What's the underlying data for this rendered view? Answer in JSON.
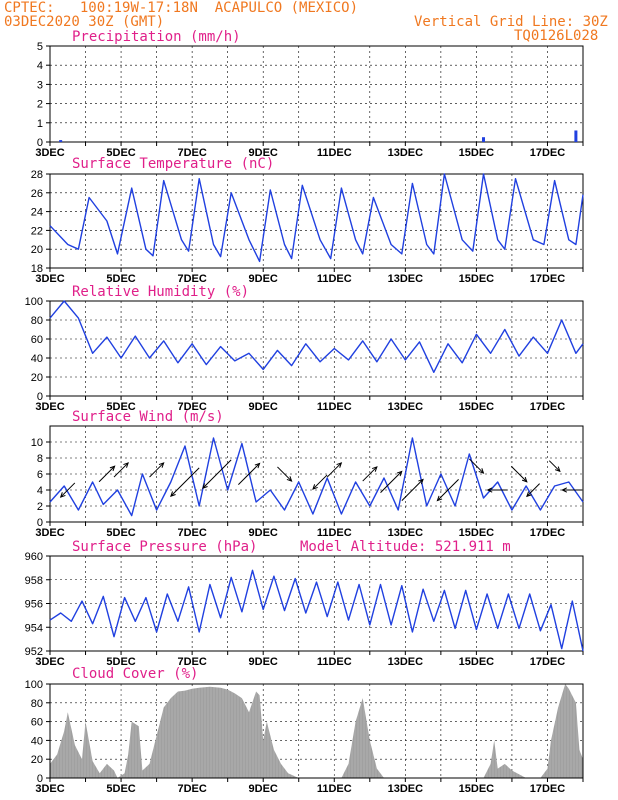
{
  "header": {
    "source": "CPTEC:",
    "coords": "100:19W-17:18N",
    "location": "ACAPULCO (MEXICO)",
    "run": "03DEC2020 30Z (GMT)",
    "grid_line": "Vertical Grid Line: 30Z",
    "code": "TQ0126L028"
  },
  "colors": {
    "header": "#f07820",
    "panel_title": "#e0208a",
    "series": "#2040e0",
    "cloud": "#a0a0a0"
  },
  "x_axis": {
    "labels": [
      "3DEC",
      "5DEC",
      "7DEC",
      "9DEC",
      "11DEC",
      "13DEC",
      "15DEC",
      "17DEC"
    ],
    "start_day": 3,
    "end_day": 18
  },
  "chart_data": [
    {
      "type": "bar",
      "title": "Precipitation (mm/h)",
      "ylim": [
        0,
        5
      ],
      "yticks": [
        0,
        1,
        2,
        3,
        4,
        5
      ],
      "x": [
        3.3,
        15.2,
        17.8
      ],
      "values": [
        0.1,
        0.25,
        0.6
      ]
    },
    {
      "type": "line",
      "title": "Surface Temperature (nC)",
      "ylim": [
        18,
        28
      ],
      "yticks": [
        18,
        20,
        22,
        24,
        26,
        28
      ],
      "x": [
        3.0,
        3.5,
        3.8,
        4.1,
        4.6,
        4.9,
        5.3,
        5.7,
        5.9,
        6.2,
        6.7,
        6.9,
        7.2,
        7.6,
        7.8,
        8.1,
        8.6,
        8.9,
        9.2,
        9.6,
        9.8,
        10.1,
        10.6,
        10.9,
        11.2,
        11.6,
        11.8,
        12.1,
        12.6,
        12.9,
        13.2,
        13.6,
        13.8,
        14.1,
        14.6,
        14.9,
        15.2,
        15.6,
        15.8,
        16.1,
        16.6,
        16.9,
        17.2,
        17.6,
        17.8,
        18.0
      ],
      "y": [
        22.5,
        20.5,
        20,
        25.5,
        23,
        19.5,
        26.5,
        20,
        19.3,
        27.3,
        21,
        19.8,
        27.5,
        20.5,
        19.2,
        26,
        21,
        18.7,
        26.3,
        20.5,
        19,
        26.8,
        21,
        19,
        26.5,
        21,
        19.5,
        25.5,
        20.5,
        19.5,
        27,
        20.5,
        19.5,
        28,
        21,
        19.8,
        28,
        21,
        20,
        27.5,
        21,
        20.5,
        27.3,
        21,
        20.5,
        25.8
      ]
    },
    {
      "type": "line",
      "title": "Relative Humidity (%)",
      "ylim": [
        0,
        100
      ],
      "yticks": [
        0,
        20,
        40,
        60,
        80,
        100
      ],
      "x": [
        3.0,
        3.4,
        3.8,
        4.2,
        4.6,
        5.0,
        5.4,
        5.8,
        6.2,
        6.6,
        7.0,
        7.4,
        7.8,
        8.2,
        8.6,
        9.0,
        9.4,
        9.8,
        10.2,
        10.6,
        11.0,
        11.4,
        11.8,
        12.2,
        12.6,
        13.0,
        13.4,
        13.8,
        14.2,
        14.6,
        15.0,
        15.4,
        15.8,
        16.2,
        16.6,
        17.0,
        17.4,
        17.8,
        18.0
      ],
      "y": [
        82,
        100,
        82,
        45,
        62,
        40,
        63,
        40,
        58,
        35,
        55,
        33,
        52,
        37,
        45,
        28,
        48,
        32,
        55,
        36,
        50,
        38,
        58,
        36,
        60,
        38,
        57,
        25,
        55,
        35,
        65,
        45,
        70,
        42,
        62,
        45,
        80,
        45,
        55
      ]
    },
    {
      "type": "line",
      "title": "Surface Wind (m/s)",
      "ylim": [
        0,
        12
      ],
      "yticks": [
        0,
        2,
        4,
        6,
        8,
        10
      ],
      "x": [
        3.0,
        3.4,
        3.8,
        4.2,
        4.5,
        4.9,
        5.3,
        5.6,
        6.0,
        6.4,
        6.8,
        7.2,
        7.6,
        8.0,
        8.4,
        8.8,
        9.2,
        9.6,
        10.0,
        10.4,
        10.8,
        11.2,
        11.6,
        12.0,
        12.4,
        12.8,
        13.2,
        13.6,
        14.0,
        14.4,
        14.8,
        15.2,
        15.6,
        16.0,
        16.4,
        16.8,
        17.2,
        17.6,
        18.0
      ],
      "y": [
        2.5,
        4.5,
        1.5,
        5,
        2.2,
        4,
        0.8,
        6,
        1.5,
        5,
        9.5,
        2,
        10.5,
        4,
        9.8,
        2.5,
        4,
        1.5,
        5,
        1,
        5.5,
        1,
        5,
        2,
        5.5,
        1.5,
        10.5,
        2,
        6,
        2,
        8.5,
        3,
        5,
        1.5,
        4.5,
        1.5,
        4.5,
        5,
        2.5
      ],
      "arrows": [
        {
          "x": 3.5,
          "y": 4,
          "dir": 225,
          "len": 20
        },
        {
          "x": 4.6,
          "y": 6,
          "dir": 45,
          "len": 22
        },
        {
          "x": 5.0,
          "y": 6.5,
          "dir": 45,
          "len": 20
        },
        {
          "x": 6.0,
          "y": 6.5,
          "dir": 45,
          "len": 20
        },
        {
          "x": 6.8,
          "y": 5,
          "dir": 225,
          "len": 40
        },
        {
          "x": 7.7,
          "y": 6,
          "dir": 225,
          "len": 40
        },
        {
          "x": 8.6,
          "y": 6,
          "dir": 45,
          "len": 30
        },
        {
          "x": 9.6,
          "y": 6,
          "dir": 315,
          "len": 20
        },
        {
          "x": 10.6,
          "y": 5,
          "dir": 225,
          "len": 20
        },
        {
          "x": 11.0,
          "y": 6.5,
          "dir": 45,
          "len": 20
        },
        {
          "x": 12.0,
          "y": 6,
          "dir": 45,
          "len": 20
        },
        {
          "x": 12.6,
          "y": 5,
          "dir": 45,
          "len": 30
        },
        {
          "x": 13.2,
          "y": 4,
          "dir": 45,
          "len": 30
        },
        {
          "x": 14.2,
          "y": 4,
          "dir": 225,
          "len": 30
        },
        {
          "x": 15.0,
          "y": 7,
          "dir": 315,
          "len": 20
        },
        {
          "x": 15.6,
          "y": 4,
          "dir": 180,
          "len": 20
        },
        {
          "x": 16.2,
          "y": 6,
          "dir": 315,
          "len": 22
        },
        {
          "x": 16.6,
          "y": 4,
          "dir": 225,
          "len": 18
        },
        {
          "x": 17.2,
          "y": 7,
          "dir": 315,
          "len": 15
        },
        {
          "x": 17.7,
          "y": 4,
          "dir": 180,
          "len": 20
        }
      ]
    },
    {
      "type": "line",
      "title": "Surface Pressure (hPa)",
      "annotation": "Model Altitude: 521.911 m",
      "ylim": [
        952,
        960
      ],
      "yticks": [
        952,
        954,
        956,
        958,
        960
      ],
      "x": [
        3.0,
        3.3,
        3.6,
        3.9,
        4.2,
        4.5,
        4.8,
        5.1,
        5.4,
        5.7,
        6.0,
        6.3,
        6.6,
        6.9,
        7.2,
        7.5,
        7.8,
        8.1,
        8.4,
        8.7,
        9.0,
        9.3,
        9.6,
        9.9,
        10.2,
        10.5,
        10.8,
        11.1,
        11.4,
        11.7,
        12.0,
        12.3,
        12.6,
        12.9,
        13.2,
        13.5,
        13.8,
        14.1,
        14.4,
        14.7,
        15.0,
        15.3,
        15.6,
        15.9,
        16.2,
        16.5,
        16.8,
        17.1,
        17.4,
        17.7,
        18.0
      ],
      "y": [
        954.6,
        955.2,
        954.5,
        956.2,
        954.3,
        956.6,
        953.2,
        956.5,
        954.5,
        956.5,
        953.6,
        956.8,
        954.5,
        957.4,
        953.6,
        957.6,
        954.8,
        958.2,
        955.3,
        958.8,
        955.5,
        958.3,
        955.4,
        958.1,
        955.2,
        957.8,
        954.9,
        957.8,
        954.6,
        957.6,
        954.2,
        957.6,
        954.2,
        957.5,
        953.6,
        957.2,
        954.5,
        957.1,
        953.9,
        957.1,
        953.8,
        956.8,
        953.9,
        956.8,
        953.9,
        956.8,
        953.7,
        955.9,
        952.2,
        956.2,
        952.0
      ]
    },
    {
      "type": "area",
      "title": "Cloud Cover (%)",
      "ylim": [
        0,
        100
      ],
      "yticks": [
        0,
        20,
        40,
        60,
        80,
        100
      ],
      "x": [
        3.0,
        3.2,
        3.4,
        3.5,
        3.7,
        3.9,
        4.0,
        4.2,
        4.4,
        4.6,
        4.8,
        4.9,
        5.1,
        5.2,
        5.3,
        5.5,
        5.6,
        5.8,
        6.0,
        6.2,
        6.4,
        6.6,
        6.8,
        7.0,
        7.2,
        7.5,
        7.8,
        8.0,
        8.2,
        8.4,
        8.6,
        8.8,
        8.9,
        9.0,
        9.1,
        9.3,
        9.5,
        9.7,
        10.0,
        10.5,
        11.0,
        11.2,
        11.4,
        11.6,
        11.8,
        12.0,
        12.2,
        12.4,
        12.6,
        13.0,
        14.0,
        15.0,
        15.2,
        15.4,
        15.5,
        15.6,
        15.8,
        16.0,
        16.4,
        16.8,
        17.0,
        17.1,
        17.3,
        17.5,
        17.6,
        17.8,
        17.9,
        18.0
      ],
      "y": [
        15,
        25,
        50,
        70,
        35,
        20,
        60,
        18,
        5,
        15,
        8,
        0,
        5,
        25,
        60,
        55,
        8,
        15,
        45,
        75,
        85,
        92,
        93,
        95,
        96,
        97,
        96,
        94,
        90,
        85,
        70,
        92,
        88,
        40,
        60,
        30,
        15,
        5,
        0,
        0,
        0,
        0,
        15,
        60,
        85,
        40,
        10,
        0,
        0,
        0,
        0,
        0,
        0,
        15,
        40,
        10,
        15,
        8,
        0,
        0,
        10,
        40,
        75,
        100,
        95,
        80,
        30,
        20
      ]
    }
  ]
}
